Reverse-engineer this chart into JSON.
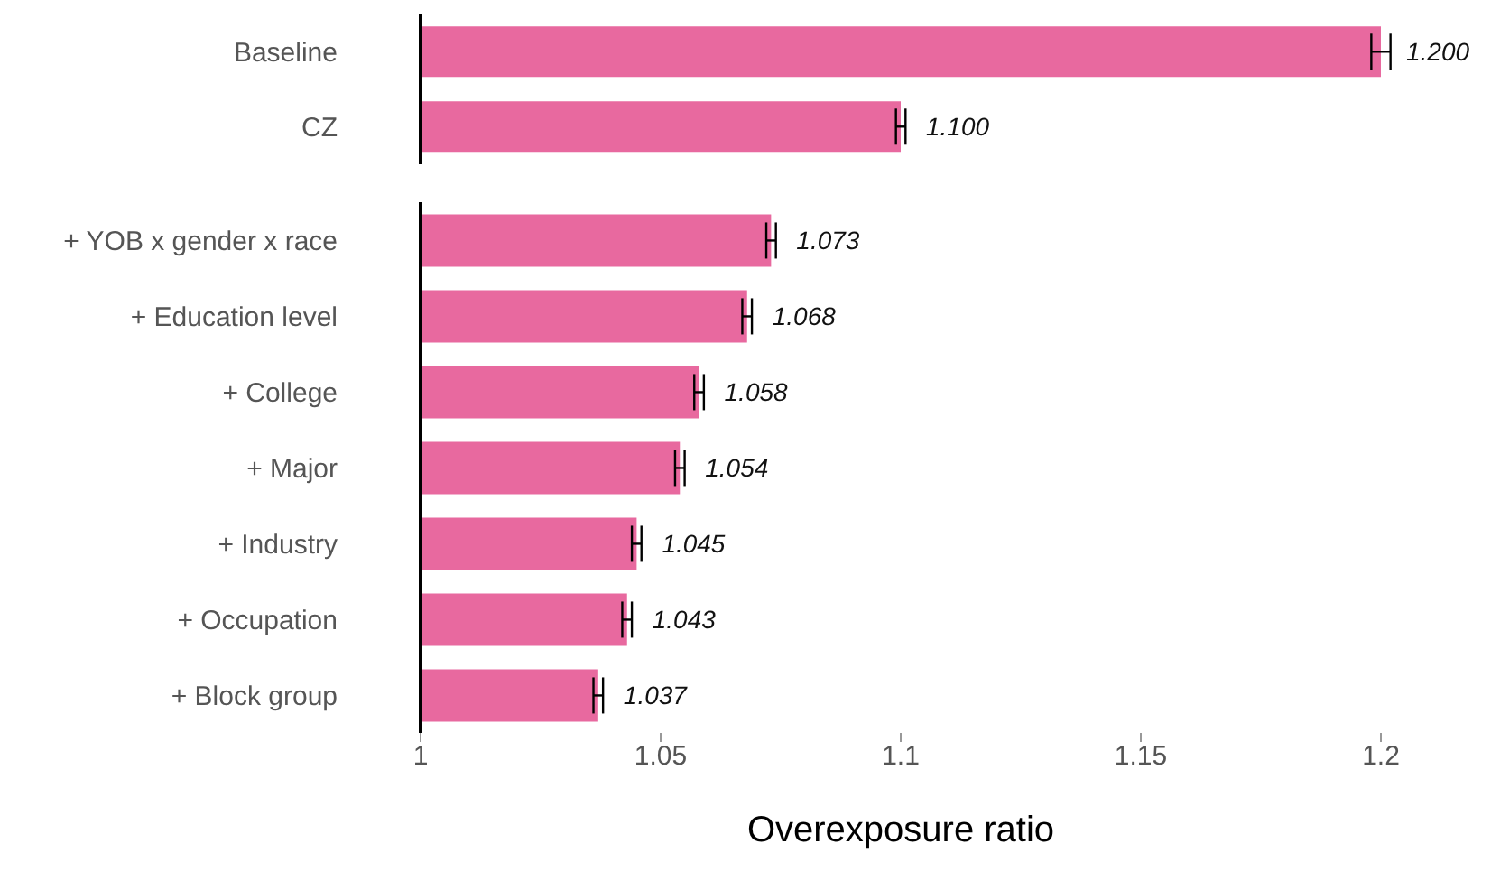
{
  "chart_data": [
    {
      "type": "bar",
      "orientation": "horizontal",
      "categories": [
        "Baseline",
        "CZ"
      ],
      "series": [
        {
          "color": "#e8699f",
          "values": [
            1.2,
            1.1
          ],
          "errors": [
            0.002,
            0.001
          ],
          "value_labels": [
            "1.200",
            "1.100"
          ]
        }
      ],
      "xlim": [
        1,
        1.2
      ],
      "xticks": [
        1,
        1.05,
        1.1,
        1.15,
        1.2
      ],
      "tick_labels": "y",
      "grid": false,
      "legend": false
    },
    {
      "type": "bar",
      "orientation": "horizontal",
      "categories": [
        "+ YOB x gender x race",
        "+ Education level",
        "+ College",
        "+ Major",
        "+ Industry",
        "+ Occupation",
        "+ Block group"
      ],
      "series": [
        {
          "color": "#e8699f",
          "values": [
            1.073,
            1.068,
            1.058,
            1.054,
            1.045,
            1.043,
            1.037
          ],
          "errors": [
            0.001,
            0.001,
            0.001,
            0.001,
            0.001,
            0.001,
            0.001
          ],
          "value_labels": [
            "1.073",
            "1.068",
            "1.058",
            "1.054",
            "1.045",
            "1.043",
            "1.037"
          ]
        }
      ],
      "xlim": [
        1,
        1.2
      ],
      "xticks": [
        1,
        1.05,
        1.1,
        1.15,
        1.2
      ],
      "xlabel": "Overexposure ratio",
      "grid": false,
      "legend": false
    }
  ]
}
